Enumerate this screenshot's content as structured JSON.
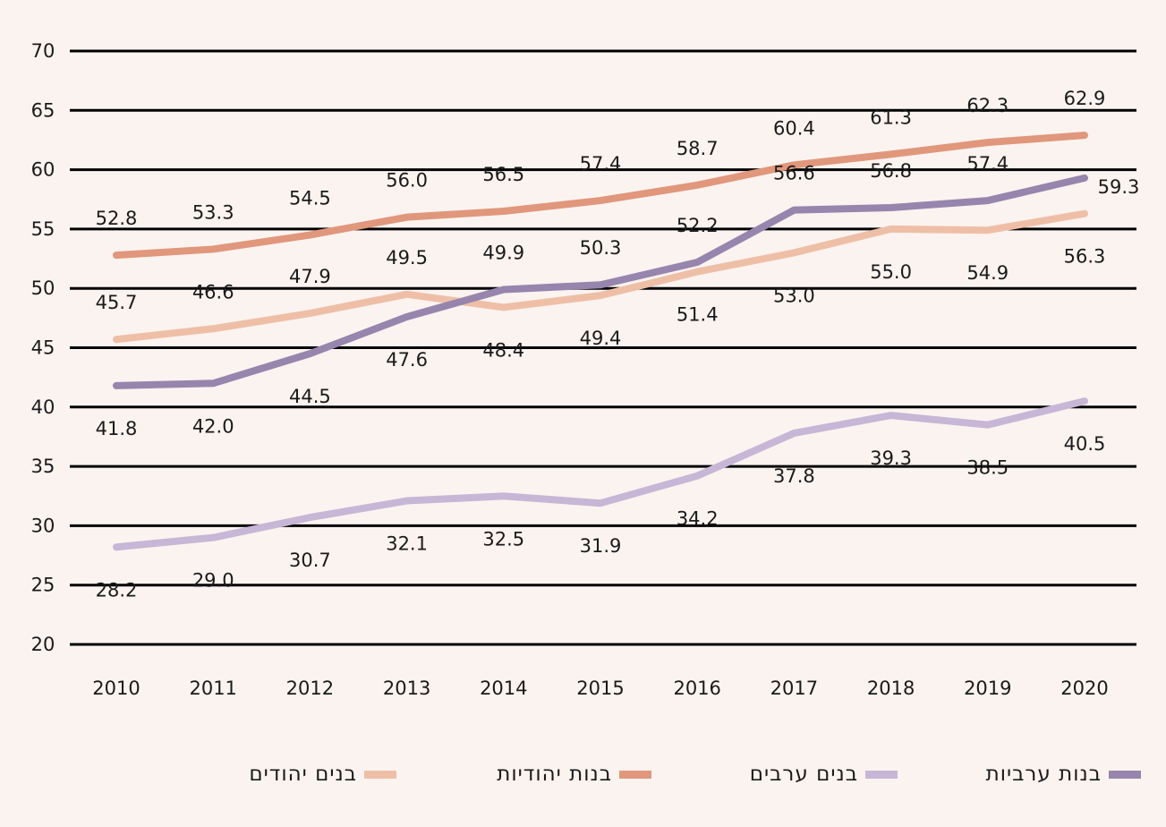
{
  "chart_data": {
    "type": "line",
    "title": "",
    "xlabel": "",
    "ylabel": "",
    "ylim": [
      20,
      70
    ],
    "yticks": [
      "20",
      "25",
      "30",
      "35",
      "40",
      "45",
      "50",
      "55",
      "60",
      "65",
      "70"
    ],
    "categories": [
      "2010",
      "2011",
      "2012",
      "2013",
      "2014",
      "2015",
      "2016",
      "2017",
      "2018",
      "2019",
      "2020"
    ],
    "grid": true,
    "legend_position": "bottom",
    "series": [
      {
        "name": "בנים יהודים",
        "color": "#eebfa6",
        "values": [
          45.7,
          46.6,
          47.9,
          49.5,
          48.4,
          49.4,
          51.4,
          53.0,
          55.0,
          54.9,
          56.3
        ],
        "labels": [
          "45.7",
          "46.6",
          "47.9",
          "49.5",
          "48.4",
          "49.4",
          "51.4",
          "53.0",
          "55.0",
          "54.9",
          "56.3"
        ],
        "label_side": [
          "above",
          "above",
          "above",
          "above",
          "below",
          "below",
          "below",
          "below",
          "below",
          "below",
          "below"
        ]
      },
      {
        "name": "בנות יהודיות",
        "color": "#e0977b",
        "values": [
          52.8,
          53.3,
          54.5,
          56.0,
          56.5,
          57.4,
          58.7,
          60.4,
          61.3,
          62.3,
          62.9
        ],
        "labels": [
          "52.8",
          "53.3",
          "54.5",
          "56.0",
          "56.5",
          "57.4",
          "58.7",
          "60.4",
          "61.3",
          "62.3",
          "62.9"
        ],
        "label_side": [
          "above",
          "above",
          "above",
          "above",
          "above",
          "above",
          "above",
          "above",
          "above",
          "above",
          "above"
        ]
      },
      {
        "name": "בנים ערבים",
        "color": "#c7b6d5",
        "values": [
          28.2,
          29.0,
          30.7,
          32.1,
          32.5,
          31.9,
          34.2,
          37.8,
          39.3,
          38.5,
          40.5
        ],
        "labels": [
          "28.2",
          "29.0",
          "30.7",
          "32.1",
          "32.5",
          "31.9",
          "34.2",
          "37.8",
          "39.3",
          "38.5",
          "40.5"
        ],
        "label_side": [
          "below",
          "below",
          "below",
          "below",
          "below",
          "below",
          "below",
          "below",
          "below",
          "below",
          "below"
        ]
      },
      {
        "name": "בנות ערביות",
        "color": "#9785ad",
        "values": [
          41.8,
          42.0,
          44.5,
          47.6,
          49.9,
          50.3,
          52.2,
          56.6,
          56.8,
          57.4,
          59.3
        ],
        "labels": [
          "41.8",
          "42.0",
          "44.5",
          "47.6",
          "49.9",
          "50.3",
          "52.2",
          "56.6",
          "56.8",
          "57.4",
          "59.3"
        ],
        "label_side": [
          "below",
          "below",
          "below",
          "below",
          "above",
          "above",
          "above",
          "above",
          "above",
          "above",
          "right"
        ]
      }
    ],
    "legend_order": [
      0,
      1,
      2,
      3
    ]
  }
}
